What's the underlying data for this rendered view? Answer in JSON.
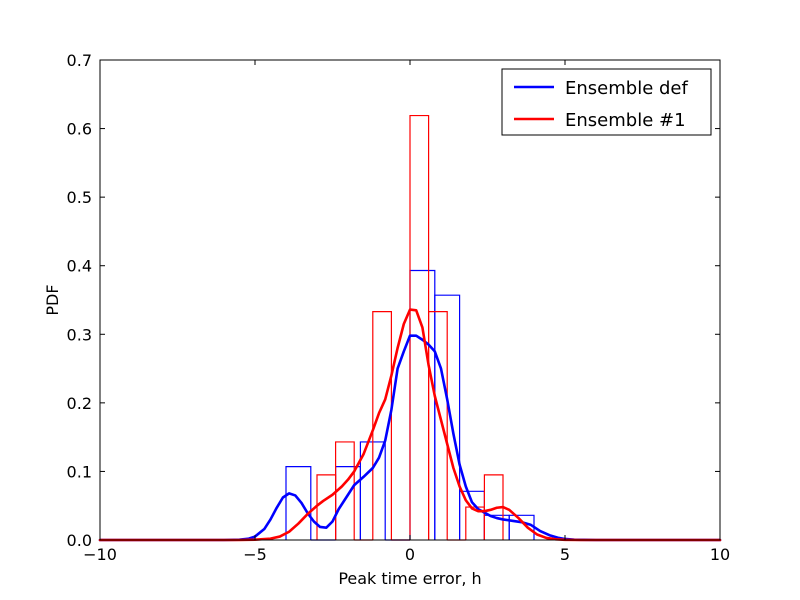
{
  "chart_data": {
    "type": "line",
    "title": "",
    "xlabel": "Peak time error, h",
    "ylabel": "PDF",
    "xlim": [
      -10,
      10
    ],
    "ylim": [
      0,
      0.7
    ],
    "xticks": [
      -10,
      -5,
      0,
      5,
      10
    ],
    "xtick_labels": [
      "−10",
      "−5",
      "0",
      "5",
      "10"
    ],
    "yticks": [
      0.0,
      0.1,
      0.2,
      0.3,
      0.4,
      0.5,
      0.6,
      0.7
    ],
    "ytick_labels": [
      "0.0",
      "0.1",
      "0.2",
      "0.3",
      "0.4",
      "0.5",
      "0.6",
      "0.7"
    ],
    "grid": false,
    "legend_position": "top-right",
    "series": [
      {
        "name": "Ensemble def",
        "color": "#0000ff",
        "kde": {
          "x": [
            -10,
            -6,
            -5.5,
            -5.2,
            -5,
            -4.7,
            -4.5,
            -4.3,
            -4.1,
            -3.9,
            -3.7,
            -3.5,
            -3.3,
            -3.1,
            -2.9,
            -2.7,
            -2.5,
            -2.3,
            -2,
            -1.8,
            -1.5,
            -1.2,
            -1,
            -0.8,
            -0.6,
            -0.4,
            -0.2,
            0,
            0.2,
            0.4,
            0.6,
            0.8,
            1,
            1.2,
            1.4,
            1.6,
            1.8,
            2,
            2.2,
            2.4,
            2.6,
            2.8,
            3,
            3.3,
            3.6,
            3.9,
            4.2,
            4.5,
            4.8,
            5,
            5.3,
            5.6,
            6,
            10
          ],
          "y": [
            0,
            0,
            0.0005,
            0.002,
            0.005,
            0.016,
            0.03,
            0.047,
            0.062,
            0.068,
            0.065,
            0.054,
            0.039,
            0.027,
            0.019,
            0.018,
            0.027,
            0.045,
            0.066,
            0.08,
            0.092,
            0.105,
            0.12,
            0.145,
            0.19,
            0.25,
            0.275,
            0.298,
            0.298,
            0.292,
            0.285,
            0.275,
            0.25,
            0.205,
            0.155,
            0.11,
            0.078,
            0.055,
            0.045,
            0.04,
            0.035,
            0.032,
            0.03,
            0.028,
            0.026,
            0.022,
            0.013,
            0.007,
            0.003,
            0.0015,
            0.0005,
            0.0002,
            0,
            0
          ]
        },
        "histogram": {
          "edges": [
            -4.0,
            -3.2,
            -2.4,
            -1.6,
            -0.8,
            0.0,
            0.8,
            1.6,
            2.4,
            3.2,
            4.0
          ],
          "values": [
            0.107,
            0.0,
            0.107,
            0.143,
            0.0,
            0.393,
            0.357,
            0.071,
            0.036,
            0.036
          ]
        }
      },
      {
        "name": "Ensemble #1",
        "color": "#ff0000",
        "kde": {
          "x": [
            -10,
            -5.5,
            -5,
            -4.5,
            -4.2,
            -3.9,
            -3.6,
            -3.3,
            -3,
            -2.8,
            -2.5,
            -2.2,
            -2,
            -1.8,
            -1.5,
            -1.2,
            -1,
            -0.8,
            -0.6,
            -0.4,
            -0.2,
            0,
            0.2,
            0.4,
            0.6,
            0.8,
            1,
            1.2,
            1.4,
            1.6,
            1.8,
            2,
            2.2,
            2.4,
            2.6,
            2.8,
            3,
            3.2,
            3.5,
            3.8,
            4.1,
            4.4,
            4.7,
            5,
            5.5,
            10
          ],
          "y": [
            0,
            0,
            0.0005,
            0.002,
            0.005,
            0.012,
            0.024,
            0.038,
            0.05,
            0.057,
            0.066,
            0.078,
            0.088,
            0.1,
            0.125,
            0.16,
            0.185,
            0.205,
            0.24,
            0.28,
            0.315,
            0.336,
            0.335,
            0.31,
            0.255,
            0.21,
            0.175,
            0.14,
            0.105,
            0.078,
            0.058,
            0.046,
            0.042,
            0.042,
            0.044,
            0.047,
            0.048,
            0.044,
            0.032,
            0.018,
            0.008,
            0.003,
            0.001,
            0.0003,
            0,
            0
          ]
        },
        "histogram": {
          "edges": [
            -3.0,
            -2.4,
            -1.8,
            -1.2,
            -0.6,
            0.0,
            0.6,
            1.2,
            1.8,
            2.4,
            3.0
          ],
          "values": [
            0.095,
            0.143,
            0.0,
            0.333,
            0.0,
            0.619,
            0.333,
            0.0,
            0.048,
            0.095
          ]
        }
      }
    ]
  }
}
